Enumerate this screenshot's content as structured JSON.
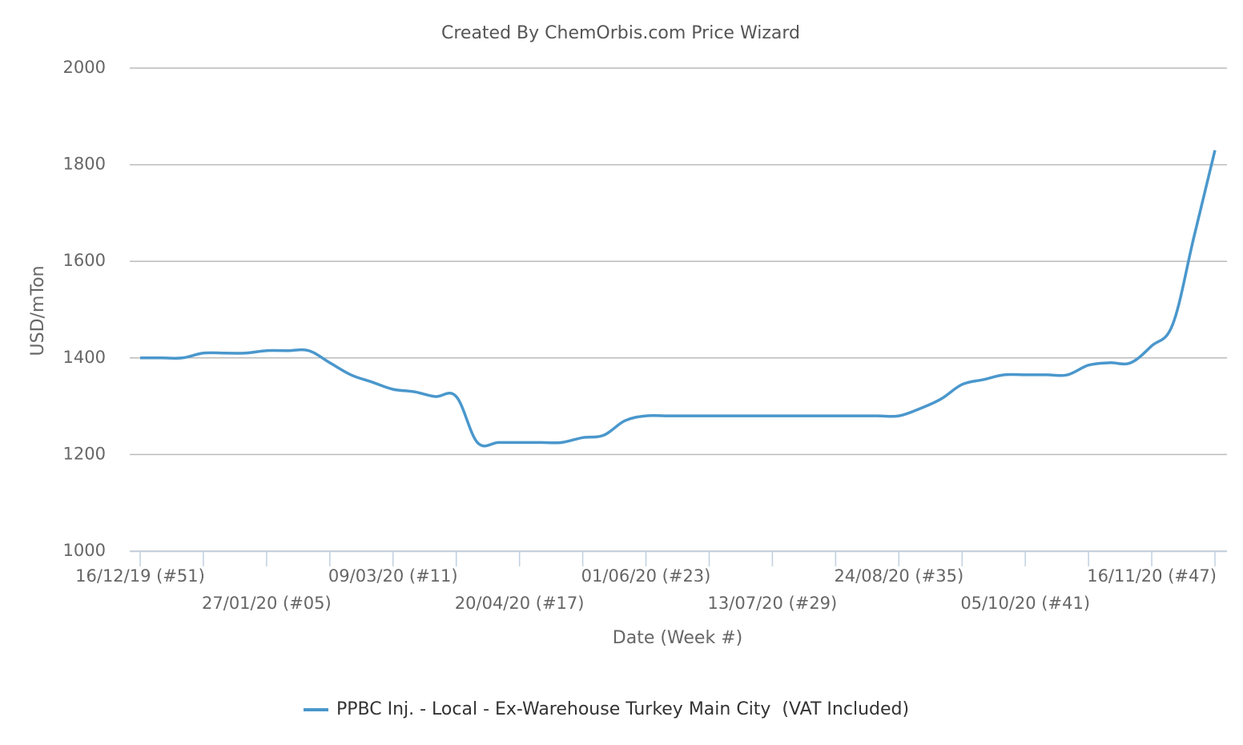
{
  "chart_data": {
    "type": "line",
    "title": "Created By ChemOrbis.com Price Wizard",
    "x_label": "Date (Week #)",
    "y_label": "USD/mTon",
    "categories": [
      "16/12/19 (#51)",
      null,
      null,
      null,
      null,
      null,
      "27/01/20 (#05)",
      null,
      null,
      null,
      null,
      null,
      "09/03/20 (#11)",
      null,
      null,
      null,
      null,
      null,
      "20/04/20 (#17)",
      null,
      null,
      null,
      null,
      null,
      "01/06/20 (#23)",
      null,
      null,
      null,
      null,
      null,
      "13/07/20 (#29)",
      null,
      null,
      null,
      null,
      null,
      "24/08/20 (#35)",
      null,
      null,
      null,
      null,
      null,
      "05/10/20 (#41)",
      null,
      null,
      null,
      null,
      null,
      "16/11/20 (#47)",
      null,
      null,
      null
    ],
    "series": [
      {
        "name": "PPBC Inj. - Local - Ex-Warehouse Turkey Main City  (VAT Included)",
        "color": "#4a97cc",
        "values": [
          1400,
          1400,
          1400,
          1410,
          1410,
          1410,
          1415,
          1415,
          1415,
          1390,
          1365,
          1350,
          1335,
          1330,
          1320,
          1320,
          1225,
          1225,
          1225,
          1225,
          1225,
          1235,
          1240,
          1270,
          1280,
          1280,
          1280,
          1280,
          1280,
          1280,
          1280,
          1280,
          1280,
          1280,
          1280,
          1280,
          1280,
          1295,
          1315,
          1345,
          1355,
          1365,
          1365,
          1365,
          1365,
          1385,
          1390,
          1390,
          1425,
          1470,
          1650,
          1830
        ]
      }
    ],
    "ylim": [
      1000,
      2000
    ],
    "yticks": [
      1000,
      1200,
      1400,
      1600,
      1800,
      2000
    ],
    "grid": true,
    "legend": "bottom"
  }
}
